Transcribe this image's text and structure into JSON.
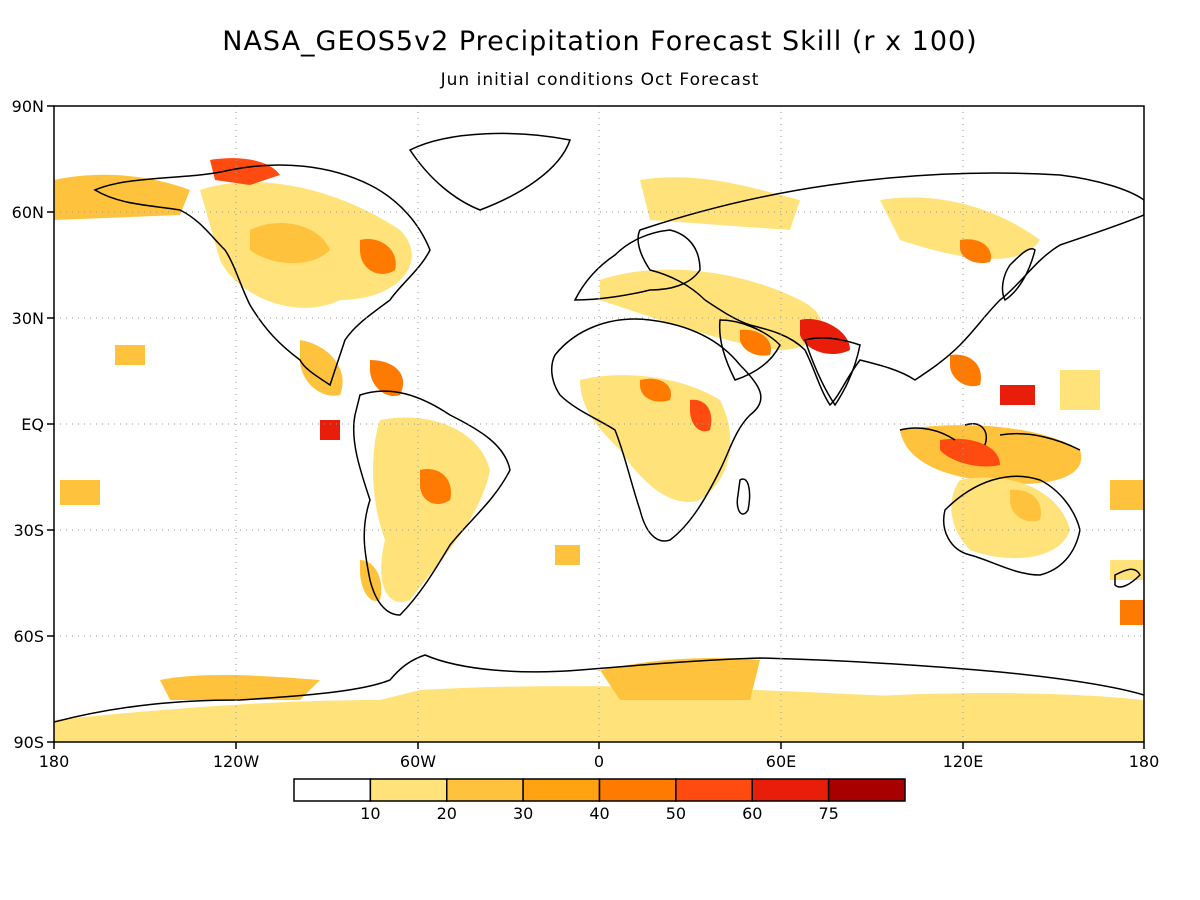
{
  "title": "NASA_GEOS5v2 Precipitation Forecast Skill (r x 100)",
  "subtitle": "Jun initial conditions  Oct Forecast",
  "axes": {
    "lon_ticks": [
      "180",
      "120W",
      "60W",
      "0",
      "60E",
      "120E",
      "180"
    ],
    "lat_ticks": [
      "90N",
      "60N",
      "30N",
      "EQ",
      "30S",
      "60S",
      "90S"
    ]
  },
  "colorbar": {
    "labels": [
      "10",
      "20",
      "30",
      "40",
      "50",
      "60",
      "75"
    ],
    "colors": [
      "#ffffff",
      "#ffe27a",
      "#ffc23c",
      "#ffa310",
      "#ff7a00",
      "#ff4a10",
      "#e81e0a",
      "#a80000"
    ]
  },
  "chart_data": {
    "type": "heatmap",
    "title": "NASA_GEOS5v2 Precipitation Forecast Skill (r x 100)",
    "subtitle": "Jun initial conditions  Oct Forecast",
    "xlim": [
      -180,
      180
    ],
    "ylim": [
      -90,
      90
    ],
    "grid": true,
    "levels": [
      10,
      20,
      30,
      40,
      50,
      60,
      75
    ]
  }
}
